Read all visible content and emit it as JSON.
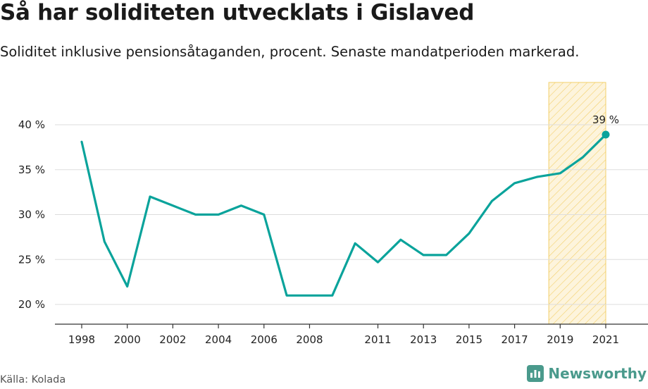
{
  "header": {
    "title": "Så har soliditeten utvecklats i Gislaved",
    "subtitle": "Soliditet inklusive pensionsåtaganden, procent. Senaste mandatperioden markerad."
  },
  "footer": {
    "source": "Källa: Kolada",
    "brand": "Newsworthy"
  },
  "colors": {
    "line": "#0aa39b",
    "highlight_stroke": "#f2cf6a",
    "highlight_fill": "#fdf4dc",
    "grid": "#dddddd",
    "axis": "#333333"
  },
  "chart_data": {
    "type": "line",
    "title": "Så har soliditeten utvecklats i Gislaved",
    "subtitle": "Soliditet inklusive pensionsåtaganden, procent. Senaste mandatperioden markerad.",
    "xlabel": "",
    "ylabel": "",
    "x": [
      1998,
      1999,
      2000,
      2001,
      2002,
      2003,
      2004,
      2005,
      2006,
      2007,
      2008,
      2009,
      2010,
      2011,
      2012,
      2013,
      2014,
      2015,
      2016,
      2017,
      2018,
      2019,
      2020,
      2021
    ],
    "values": [
      38.1,
      27.0,
      22.0,
      32.0,
      31.0,
      30.0,
      30.0,
      31.0,
      30.0,
      21.0,
      21.0,
      21.0,
      26.8,
      24.7,
      27.2,
      25.5,
      25.5,
      27.9,
      31.5,
      33.5,
      34.2,
      34.6,
      36.4,
      38.9
    ],
    "xticks": [
      "1998",
      "2000",
      "2002",
      "2004",
      "2006",
      "2008",
      "2011",
      "2013",
      "2015",
      "2017",
      "2019",
      "2021"
    ],
    "yticks": [
      "20 %",
      "25 %",
      "30 %",
      "35 %",
      "40 %"
    ],
    "ylim": [
      18,
      40
    ],
    "highlight_range": [
      2018.5,
      2021
    ],
    "last_label": "39 %",
    "grid": true,
    "legend": "none"
  }
}
